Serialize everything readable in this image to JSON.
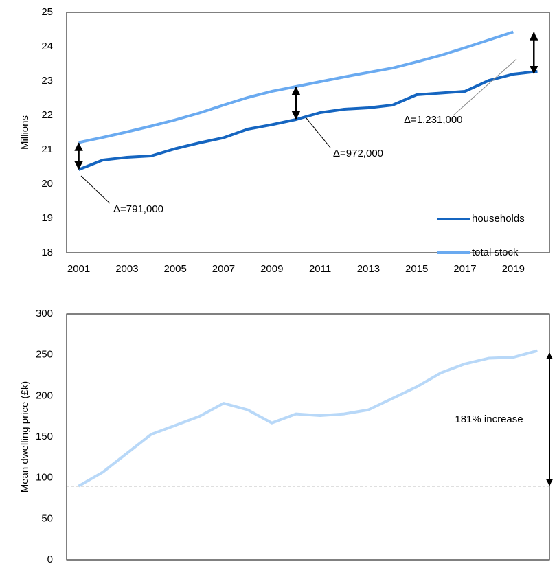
{
  "chart_data": [
    {
      "type": "line",
      "y_label": "Millions",
      "categories": [
        "2001",
        null,
        "2003",
        null,
        "2005",
        null,
        "2007",
        null,
        "2009",
        null,
        "2011",
        null,
        "2013",
        null,
        "2015",
        null,
        "2017",
        null,
        "2019",
        null
      ],
      "series": [
        {
          "name": "households",
          "color": "#1565c0",
          "values": [
            20.42,
            20.7,
            20.78,
            20.82,
            21.03,
            21.2,
            21.35,
            21.6,
            21.73,
            21.88,
            22.08,
            22.18,
            22.22,
            22.3,
            22.6,
            22.65,
            22.7,
            23.02,
            23.2,
            23.28
          ]
        },
        {
          "name": "total stock",
          "color": "#6aaaf0",
          "values": [
            21.21,
            21.36,
            21.52,
            21.69,
            21.87,
            22.07,
            22.3,
            22.52,
            22.7,
            22.84,
            22.98,
            23.12,
            23.25,
            23.38,
            23.56,
            23.75,
            23.97,
            24.2,
            24.43,
            null
          ]
        }
      ],
      "annotations": [
        "Δ=791,000",
        "Δ=972,000",
        "Δ=1,231,000"
      ],
      "ylim": [
        18,
        25
      ],
      "yticks": [
        18,
        19,
        20,
        21,
        22,
        23,
        24,
        25
      ],
      "grid": false,
      "legend": "lower right"
    },
    {
      "type": "line",
      "y_label": "Mean dwelling price (£k)",
      "color": "#b8d8f8",
      "values": [
        90,
        107,
        130,
        153,
        164,
        175,
        191,
        183,
        167,
        178,
        176,
        178,
        183,
        197,
        211,
        228,
        239,
        246,
        247,
        255
      ],
      "reference_line": 90,
      "increase_top": 253,
      "annotation": "181% increase",
      "ylim": [
        0,
        300
      ],
      "yticks": [
        0,
        50,
        100,
        150,
        200,
        250,
        300
      ],
      "grid": false
    }
  ]
}
